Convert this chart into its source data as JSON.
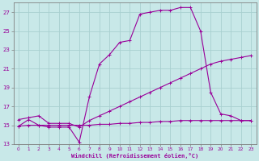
{
  "bg_color": "#c8e8e8",
  "grid_color": "#a8d0d0",
  "line_color": "#990099",
  "spine_color": "#808080",
  "xlabel": "Windchill (Refroidissement éolien,°C)",
  "xlim": [
    -0.5,
    23.5
  ],
  "ylim": [
    13,
    28
  ],
  "yticks": [
    13,
    15,
    17,
    19,
    21,
    23,
    25,
    27
  ],
  "xticks": [
    0,
    1,
    2,
    3,
    4,
    5,
    6,
    7,
    8,
    9,
    10,
    11,
    12,
    13,
    14,
    15,
    16,
    17,
    18,
    19,
    20,
    21,
    22,
    23
  ],
  "lines": [
    {
      "x": [
        0,
        1,
        2,
        3,
        4,
        5,
        6,
        7,
        8,
        9,
        10,
        11,
        12,
        13,
        14,
        15,
        16,
        17,
        18,
        19,
        20,
        21,
        22,
        23
      ],
      "y": [
        14.9,
        15.0,
        15.0,
        15.0,
        15.0,
        15.0,
        15.0,
        15.0,
        15.1,
        15.1,
        15.2,
        15.2,
        15.3,
        15.3,
        15.4,
        15.4,
        15.5,
        15.5,
        15.5,
        15.5,
        15.5,
        15.5,
        15.5,
        15.5
      ]
    },
    {
      "x": [
        0,
        1,
        2,
        3,
        4,
        5,
        6,
        7,
        8,
        9,
        10,
        11,
        12,
        13,
        14,
        15,
        16,
        17,
        18,
        19,
        20,
        21,
        22,
        23
      ],
      "y": [
        15.6,
        15.8,
        16.0,
        15.2,
        15.2,
        15.2,
        14.8,
        15.5,
        16.0,
        16.5,
        17.0,
        17.5,
        18.0,
        18.5,
        19.0,
        19.5,
        20.0,
        20.5,
        21.0,
        21.5,
        21.8,
        22.0,
        22.2,
        22.4
      ]
    },
    {
      "x": [
        0,
        1,
        2,
        3,
        4,
        5,
        6,
        7,
        8,
        9,
        10,
        11,
        12,
        13,
        14,
        15,
        16,
        17,
        18,
        19,
        20,
        21,
        22,
        23
      ],
      "y": [
        14.9,
        15.6,
        15.0,
        14.8,
        14.8,
        14.8,
        13.2,
        18.0,
        21.5,
        22.5,
        23.8,
        24.0,
        26.8,
        27.0,
        27.2,
        27.2,
        27.5,
        27.5,
        25.0,
        18.5,
        16.2,
        16.0,
        15.5,
        15.5
      ]
    }
  ]
}
